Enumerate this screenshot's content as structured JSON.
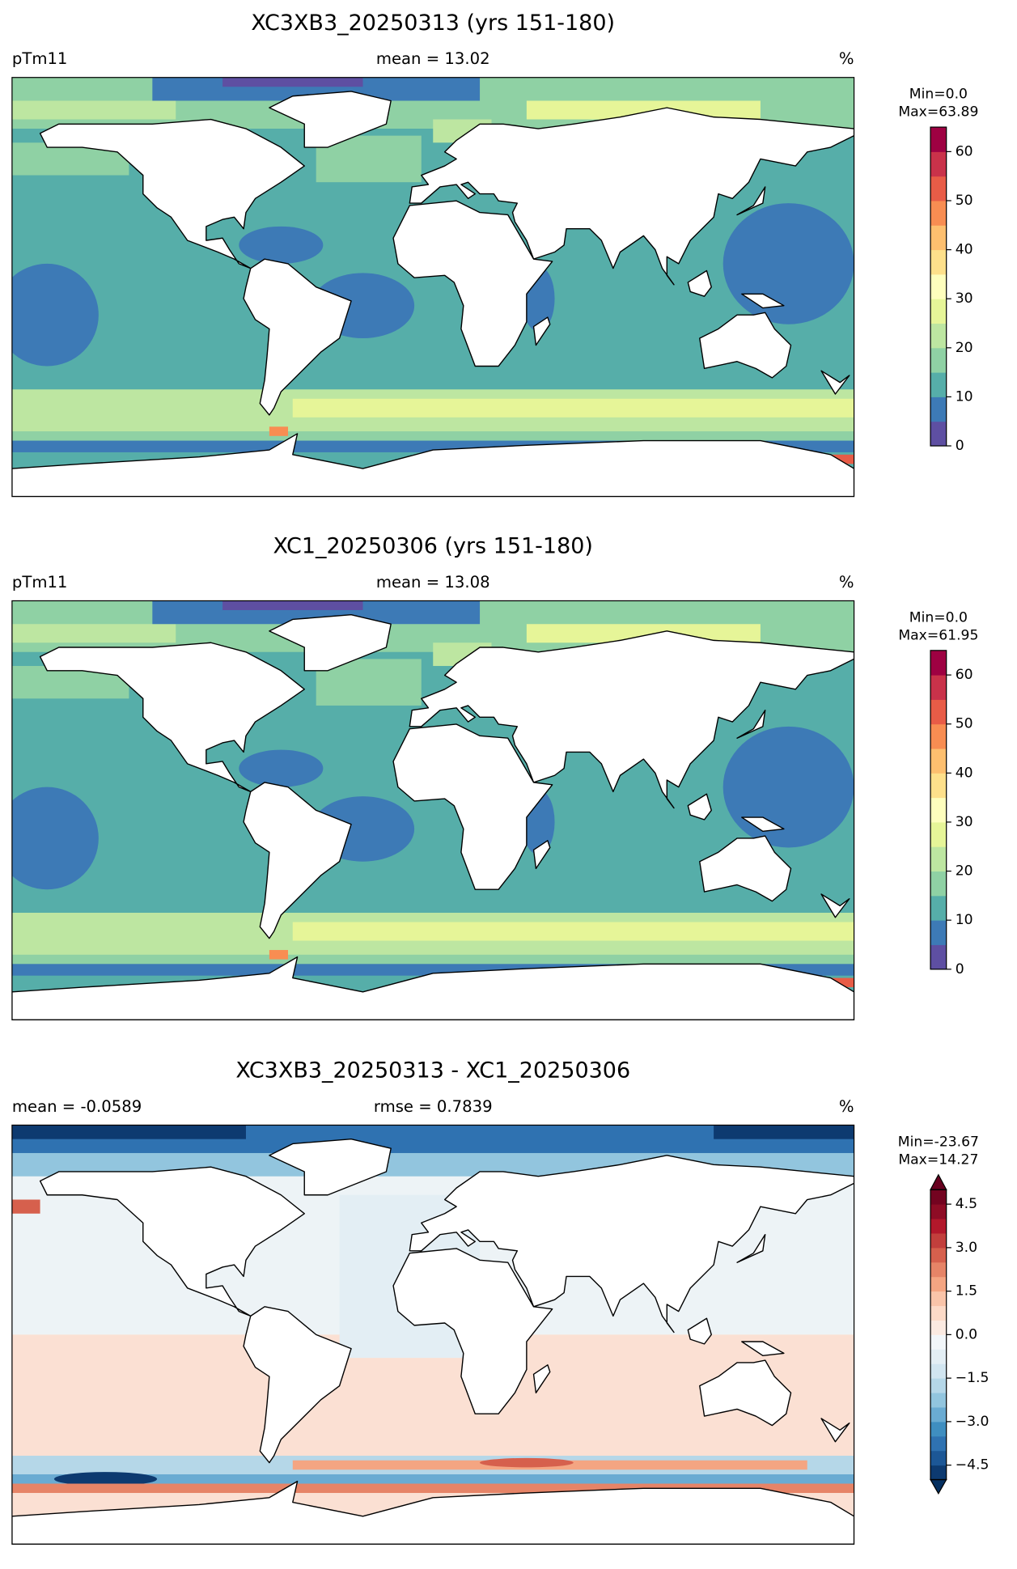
{
  "panels": [
    {
      "title": "XC3XB3_20250313 (yrs 151-180)",
      "left_label": "pTm11",
      "center_label": "mean = 13.02",
      "right_label": "%",
      "colorbar": {
        "stats": [
          "Min=0.0",
          "Max=63.89"
        ],
        "lim": [
          0,
          65
        ],
        "ticks": [
          0,
          10,
          20,
          30,
          40,
          50,
          60
        ],
        "colors": [
          "#5e4fa2",
          "#3d7ab6",
          "#56aea9",
          "#8fd1a4",
          "#bde6a1",
          "#e6f598",
          "#fefebd",
          "#fee08b",
          "#fdbf6f",
          "#f88d52",
          "#e85c47",
          "#c9324a",
          "#9e0142"
        ]
      }
    },
    {
      "title": "XC1_20250306 (yrs 151-180)",
      "left_label": "pTm11",
      "center_label": "mean = 13.08",
      "right_label": "%",
      "colorbar": {
        "stats": [
          "Min=0.0",
          "Max=61.95"
        ],
        "lim": [
          0,
          65
        ],
        "ticks": [
          0,
          10,
          20,
          30,
          40,
          50,
          60
        ],
        "colors": [
          "#5e4fa2",
          "#3d7ab6",
          "#56aea9",
          "#8fd1a4",
          "#bde6a1",
          "#e6f598",
          "#fefebd",
          "#fee08b",
          "#fdbf6f",
          "#f88d52",
          "#e85c47",
          "#c9324a",
          "#9e0142"
        ]
      }
    },
    {
      "title": "XC3XB3_20250313 - XC1_20250306",
      "left_label": "mean = -0.0589",
      "center_label": "rmse = 0.7839",
      "right_label": "%",
      "colorbar": {
        "stats": [
          "Min=-23.67",
          "Max=14.27"
        ],
        "lim": [
          -5,
          5
        ],
        "ticks": [
          {
            "value": -4.5,
            "label": "−4.5"
          },
          {
            "value": -3,
            "label": "−3.0"
          },
          {
            "value": -1.5,
            "label": "−1.5"
          },
          {
            "value": 0,
            "label": "0.0"
          },
          1.5,
          {
            "value": 3,
            "label": "3.0"
          },
          4.5
        ],
        "colors": [
          "#0d3a70",
          "#1c5796",
          "#2f72b1",
          "#3f8ec0",
          "#6aabd2",
          "#92c5de",
          "#b5d7e8",
          "#d1e5f0",
          "#e3eef4",
          "#f2f6f9",
          "#fbeae1",
          "#fcdac7",
          "#f9c4a9",
          "#f4a582",
          "#e68467",
          "#d6604d",
          "#c23f3c",
          "#b2182b",
          "#8e0c25",
          "#730320"
        ],
        "extend_colors": [
          "#053061",
          "#67001f"
        ]
      }
    }
  ]
}
